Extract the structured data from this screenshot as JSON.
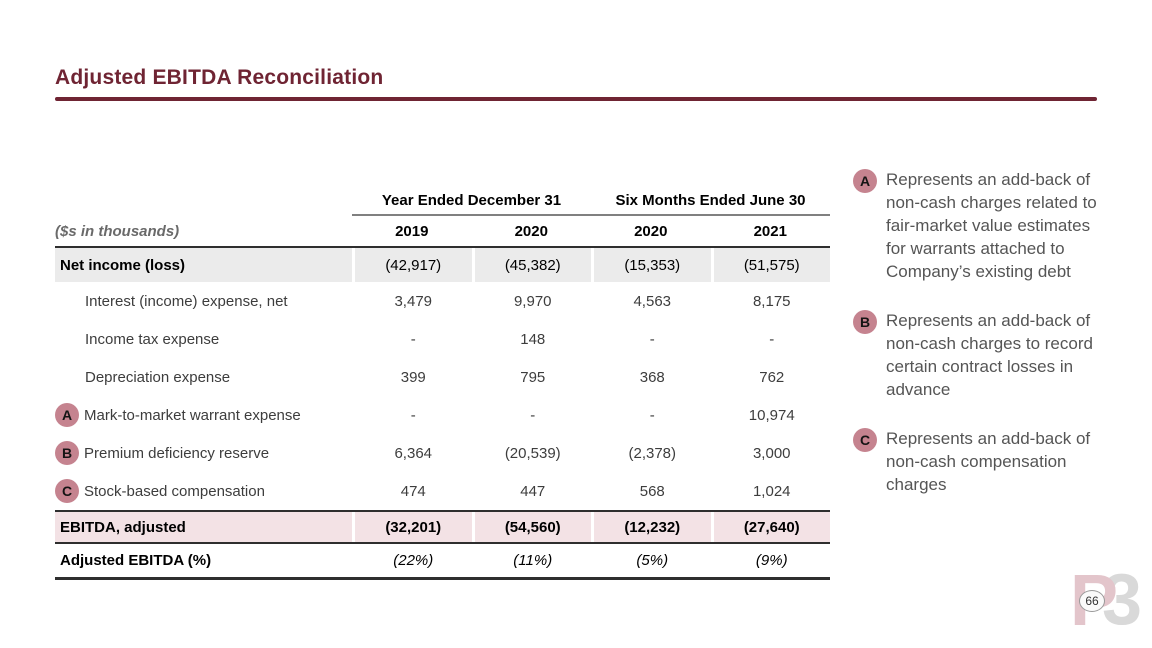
{
  "page": {
    "title": "Adjusted EBITDA Reconciliation",
    "page_number": "66",
    "logo_p": "P",
    "logo_3": "3"
  },
  "table": {
    "units_label": "($s in thousands)",
    "col_groups": [
      {
        "label": "Year Ended December 31"
      },
      {
        "label": "Six Months Ended June 30"
      }
    ],
    "years": [
      "2019",
      "2020",
      "2020",
      "2021"
    ],
    "rows": [
      {
        "label": "Net income (loss)",
        "style": "highlight-gray",
        "badge": "",
        "values": [
          "(42,917)",
          "(45,382)",
          "(15,353)",
          "(51,575)"
        ]
      },
      {
        "label": "Interest (income) expense, net",
        "style": "indent",
        "badge": "",
        "values": [
          "3,479",
          "9,970",
          "4,563",
          "8,175"
        ]
      },
      {
        "label": "Income tax expense",
        "style": "indent",
        "badge": "",
        "values": [
          "-",
          "148",
          "-",
          "-"
        ]
      },
      {
        "label": "Depreciation expense",
        "style": "indent",
        "badge": "",
        "values": [
          "399",
          "795",
          "368",
          "762"
        ]
      },
      {
        "label": "Mark-to-market warrant expense",
        "style": "badge",
        "badge": "A",
        "values": [
          "-",
          "-",
          "-",
          "10,974"
        ]
      },
      {
        "label": "Premium deficiency reserve",
        "style": "badge",
        "badge": "B",
        "values": [
          "6,364",
          "(20,539)",
          "(2,378)",
          "3,000"
        ]
      },
      {
        "label": "Stock-based compensation",
        "style": "badge",
        "badge": "C",
        "values": [
          "474",
          "447",
          "568",
          "1,024"
        ]
      },
      {
        "label": "EBITDA, adjusted",
        "style": "highlight-pink",
        "badge": "",
        "values": [
          "(32,201)",
          "(54,560)",
          "(12,232)",
          "(27,640)"
        ]
      },
      {
        "label": "Adjusted EBITDA (%)",
        "style": "percent",
        "badge": "",
        "values": [
          "(22%)",
          "(11%)",
          "(5%)",
          "(9%)"
        ]
      }
    ]
  },
  "footnotes": [
    {
      "badge": "A",
      "text": "Represents an add-back of non-cash charges related to fair-market value estimates for warrants attached to Company’s existing debt"
    },
    {
      "badge": "B",
      "text": "Represents an add-back of non-cash charges to record certain contract losses in advance"
    },
    {
      "badge": "C",
      "text": "Represents an add-back of non-cash compensation charges"
    }
  ],
  "colors": {
    "maroon": "#6F2433",
    "badge-pink": "#C5838F",
    "row-gray": "#EBEBEB",
    "row-pink": "#F3E2E5",
    "logo-p": "#E3C5CB",
    "logo-3": "#D9D9D9"
  }
}
